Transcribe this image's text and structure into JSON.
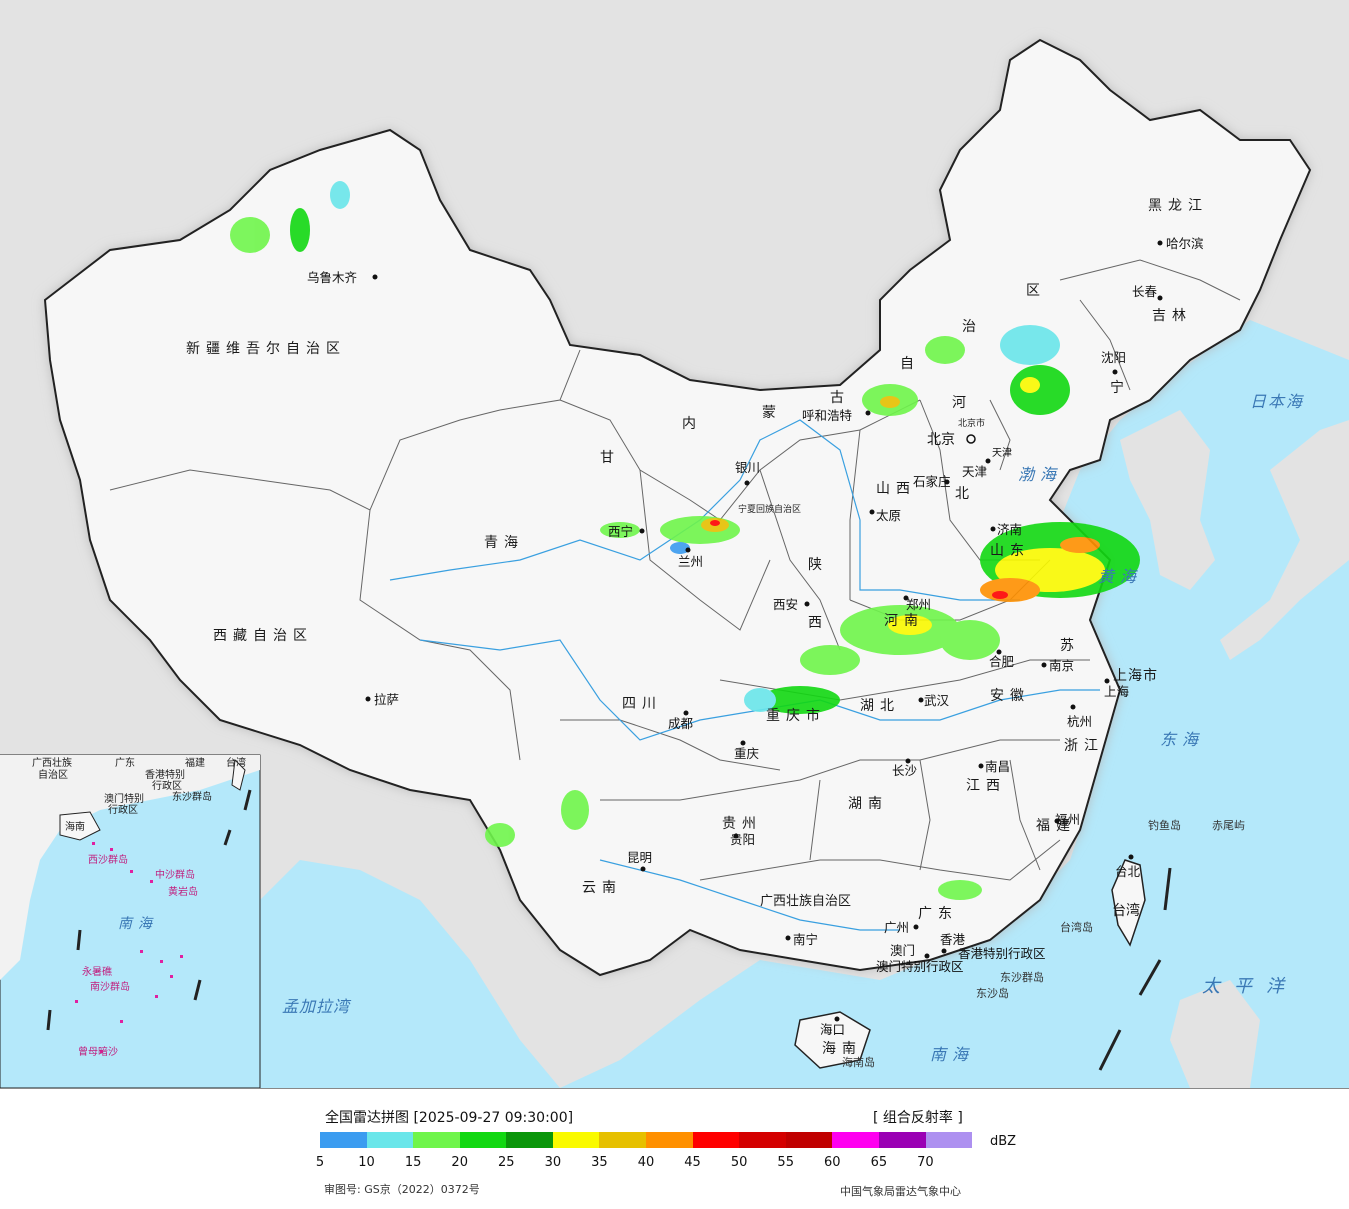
{
  "map": {
    "provinces": [
      {
        "id": "xinjiang",
        "name": "新疆维吾尔自治区"
      },
      {
        "id": "xizang",
        "name": "西藏自治区"
      },
      {
        "id": "qinghai",
        "name": "青海"
      },
      {
        "id": "gansu",
        "name": "甘"
      },
      {
        "id": "neimenggu-1",
        "name": "内"
      },
      {
        "id": "neimenggu-2",
        "name": "蒙"
      },
      {
        "id": "neimenggu-3",
        "name": "古"
      },
      {
        "id": "neimenggu-4",
        "name": "自"
      },
      {
        "id": "neimenggu-5",
        "name": "治"
      },
      {
        "id": "neimenggu-6",
        "name": "区"
      },
      {
        "id": "heilongjiang",
        "name": "黑龙江"
      },
      {
        "id": "jilin",
        "name": "吉林"
      },
      {
        "id": "liaoning",
        "name": "宁"
      },
      {
        "id": "hebei-1",
        "name": "河"
      },
      {
        "id": "hebei-2",
        "name": "北"
      },
      {
        "id": "shanxi",
        "name": "山西"
      },
      {
        "id": "shaanxi",
        "name": "陕"
      },
      {
        "id": "shaanxi-2",
        "name": "西"
      },
      {
        "id": "sichuan",
        "name": "四川"
      },
      {
        "id": "chongqing",
        "name": "重庆市"
      },
      {
        "id": "hubei",
        "name": "湖北"
      },
      {
        "id": "hunan",
        "name": "湖南"
      },
      {
        "id": "henan",
        "name": "河南"
      },
      {
        "id": "anhui",
        "name": "安徽"
      },
      {
        "id": "jiangsu",
        "name": "苏"
      },
      {
        "id": "shandong",
        "name": "山东"
      },
      {
        "id": "zhejiang",
        "name": "浙江"
      },
      {
        "id": "jiangxi",
        "name": "江西"
      },
      {
        "id": "fujian",
        "name": "福建"
      },
      {
        "id": "guizhou",
        "name": "贵州"
      },
      {
        "id": "yunnan",
        "name": "云南"
      },
      {
        "id": "guangxi",
        "name": "广西壮族自治区"
      },
      {
        "id": "guangdong",
        "name": "广东"
      },
      {
        "id": "hainan",
        "name": "海南"
      },
      {
        "id": "taiwan",
        "name": "台湾"
      },
      {
        "id": "ningxia",
        "name": "宁夏回族自治区"
      },
      {
        "id": "shanghai",
        "name": "上海市"
      },
      {
        "id": "tianjin",
        "name": "天津"
      },
      {
        "id": "beijing",
        "name": "北京市"
      },
      {
        "id": "hk",
        "name": "香港特别行政区"
      },
      {
        "id": "macau",
        "name": "澳门特别行政区"
      }
    ],
    "cities": [
      {
        "id": "urumqi",
        "name": "乌鲁木齐"
      },
      {
        "id": "lhasa",
        "name": "拉萨"
      },
      {
        "id": "xining",
        "name": "西宁"
      },
      {
        "id": "lanzhou",
        "name": "兰州"
      },
      {
        "id": "yinchuan",
        "name": "银川"
      },
      {
        "id": "hohhot",
        "name": "呼和浩特"
      },
      {
        "id": "beijing-c",
        "name": "北京"
      },
      {
        "id": "tianjin-c",
        "name": "天津"
      },
      {
        "id": "shijiazhuang",
        "name": "石家庄"
      },
      {
        "id": "taiyuan",
        "name": "太原"
      },
      {
        "id": "jinan",
        "name": "济南"
      },
      {
        "id": "xian",
        "name": "西安"
      },
      {
        "id": "zhengzhou",
        "name": "郑州"
      },
      {
        "id": "hefei",
        "name": "合肥"
      },
      {
        "id": "nanjing",
        "name": "南京"
      },
      {
        "id": "shanghai-c",
        "name": "上海"
      },
      {
        "id": "hangzhou",
        "name": "杭州"
      },
      {
        "id": "wuhan",
        "name": "武汉"
      },
      {
        "id": "chengdu",
        "name": "成都"
      },
      {
        "id": "chongqing-c",
        "name": "重庆"
      },
      {
        "id": "changsha",
        "name": "长沙"
      },
      {
        "id": "nanchang",
        "name": "南昌"
      },
      {
        "id": "fuzhou",
        "name": "福州"
      },
      {
        "id": "guiyang",
        "name": "贵阳"
      },
      {
        "id": "kunming",
        "name": "昆明"
      },
      {
        "id": "nanning",
        "name": "南宁"
      },
      {
        "id": "guangzhou",
        "name": "广州"
      },
      {
        "id": "xianggang",
        "name": "香港"
      },
      {
        "id": "aomen",
        "name": "澳门"
      },
      {
        "id": "haikou",
        "name": "海口"
      },
      {
        "id": "taibei",
        "name": "台北"
      },
      {
        "id": "shenyang",
        "name": "沈阳"
      },
      {
        "id": "changchun",
        "name": "长春"
      },
      {
        "id": "harbin",
        "name": "哈尔滨"
      }
    ],
    "seas": [
      {
        "id": "bohai",
        "name": "渤海"
      },
      {
        "id": "huanghai",
        "name": "黄海"
      },
      {
        "id": "donghai",
        "name": "东海"
      },
      {
        "id": "nanhai",
        "name": "南海"
      },
      {
        "id": "taipingyang",
        "name": "太平洋"
      },
      {
        "id": "ribenhai",
        "name": "日本海"
      },
      {
        "id": "mengjiala",
        "name": "孟加拉湾"
      }
    ],
    "islands": [
      {
        "id": "diaoyu",
        "name": "钓鱼岛"
      },
      {
        "id": "chiwei",
        "name": "赤尾屿"
      },
      {
        "id": "taiwandao",
        "name": "台湾岛"
      },
      {
        "id": "dongsha-qd",
        "name": "东沙群岛"
      },
      {
        "id": "dongsha-d",
        "name": "东沙岛"
      },
      {
        "id": "hainandao",
        "name": "海南岛"
      }
    ],
    "inset": {
      "labels": [
        {
          "id": "i-guangxi",
          "name": "广西壮族"
        },
        {
          "id": "i-guangxi2",
          "name": "自治区"
        },
        {
          "id": "i-guangdong",
          "name": "广东"
        },
        {
          "id": "i-fujian",
          "name": "福建"
        },
        {
          "id": "i-taiwan",
          "name": "台湾"
        },
        {
          "id": "i-hk",
          "name": "香港特别"
        },
        {
          "id": "i-hk2",
          "name": "行政区"
        },
        {
          "id": "i-mac",
          "name": "澳门特别"
        },
        {
          "id": "i-mac2",
          "name": "行政区"
        },
        {
          "id": "i-dongsha",
          "name": "东沙群岛"
        },
        {
          "id": "i-hainan",
          "name": "海南"
        },
        {
          "id": "i-xisha",
          "name": "西沙群岛"
        },
        {
          "id": "i-zhongsha",
          "name": "中沙群岛"
        },
        {
          "id": "i-huangyan",
          "name": "黄岩岛"
        },
        {
          "id": "i-nanhai",
          "name": "南海"
        },
        {
          "id": "i-nansha",
          "name": "南沙群岛"
        },
        {
          "id": "i-yongshu",
          "name": "永暑礁"
        },
        {
          "id": "i-zengmu",
          "name": "曾母暗沙"
        }
      ]
    }
  },
  "legend": {
    "title": "全国雷达拼图 [2025-09-27 09:30:00]",
    "product": "[ 组合反射率 ]",
    "unit": "dBZ",
    "colors": [
      "#3b9cf0",
      "#6ae6ea",
      "#6ff54b",
      "#12d812",
      "#0a960a",
      "#fafa00",
      "#e6c000",
      "#ff9000",
      "#ff0000",
      "#d40000",
      "#c00000",
      "#ff00f0",
      "#9a00b4",
      "#ad90f0"
    ],
    "ticks": [
      "5",
      "10",
      "15",
      "20",
      "25",
      "30",
      "35",
      "40",
      "45",
      "50",
      "55",
      "60",
      "65",
      "70"
    ],
    "approval": "审图号: GS京（2022）0372号",
    "source": "中国气象局雷达气象中心"
  }
}
